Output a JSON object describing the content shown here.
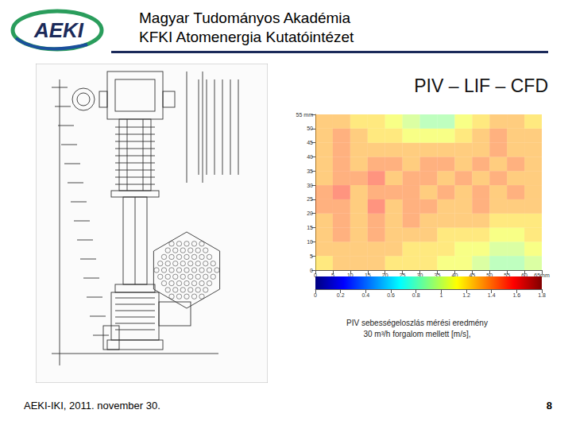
{
  "header": {
    "logo": "AEKI",
    "title_lines": [
      "Magyar Tudományos Akadémia",
      "KFKI Atomenergia Kutatóintézet"
    ]
  },
  "slide_title": "PIV – LIF – CFD",
  "caption_lines": [
    "PIV sebességeloszlás mérési eredmény",
    "30 m³/h forgalom mellett [m/s],"
  ],
  "footer": "AEKI-IKI, 2011. november 30.",
  "page_number": "8",
  "chart_data": {
    "type": "heatmap",
    "x": [
      2.5,
      7.5,
      12.5,
      17.5,
      22.5,
      27.5,
      32.5,
      37.5,
      42.5,
      47.5,
      52.5,
      57.5,
      62.5
    ],
    "y": [
      2.5,
      7.5,
      12.5,
      17.5,
      22.5,
      27.5,
      32.5,
      37.5,
      42.5,
      47.5,
      52.5
    ],
    "cells": [
      [
        1.2,
        1.3,
        1.3,
        1.3,
        1.2,
        1.2,
        1.2,
        1.1,
        1.1,
        1.0,
        0.9,
        0.9,
        1.0
      ],
      [
        1.3,
        1.3,
        1.3,
        1.3,
        1.3,
        1.2,
        1.2,
        1.2,
        1.1,
        1.1,
        1.0,
        1.0,
        1.1
      ],
      [
        1.3,
        1.4,
        1.3,
        1.4,
        1.3,
        1.3,
        1.3,
        1.2,
        1.2,
        1.2,
        1.1,
        1.1,
        1.2
      ],
      [
        1.3,
        1.4,
        1.3,
        1.4,
        1.3,
        1.4,
        1.3,
        1.3,
        1.3,
        1.3,
        1.2,
        1.2,
        1.2
      ],
      [
        1.4,
        1.4,
        1.3,
        1.5,
        1.3,
        1.4,
        1.4,
        1.3,
        1.3,
        1.4,
        1.3,
        1.3,
        1.3
      ],
      [
        1.4,
        1.5,
        1.3,
        1.4,
        1.4,
        1.4,
        1.3,
        1.4,
        1.3,
        1.4,
        1.3,
        1.4,
        1.3
      ],
      [
        1.3,
        1.4,
        1.4,
        1.5,
        1.3,
        1.4,
        1.4,
        1.3,
        1.4,
        1.3,
        1.4,
        1.3,
        1.3
      ],
      [
        1.3,
        1.4,
        1.3,
        1.4,
        1.4,
        1.3,
        1.4,
        1.4,
        1.3,
        1.4,
        1.3,
        1.4,
        1.3
      ],
      [
        1.3,
        1.4,
        1.3,
        1.3,
        1.3,
        1.3,
        1.3,
        1.3,
        1.3,
        1.3,
        1.4,
        1.3,
        1.3
      ],
      [
        1.3,
        1.4,
        1.3,
        1.2,
        1.2,
        1.1,
        1.1,
        1.1,
        1.2,
        1.3,
        1.4,
        1.3,
        1.3
      ],
      [
        1.3,
        1.3,
        1.2,
        1.2,
        1.1,
        1.0,
        0.9,
        0.9,
        1.1,
        1.2,
        1.3,
        1.3,
        1.2
      ]
    ],
    "xlim": [
      0,
      65
    ],
    "ylim": [
      0,
      55
    ],
    "xticks": [
      0,
      5,
      10,
      15,
      20,
      25,
      30,
      35,
      40,
      45,
      50,
      55,
      60,
      {
        "value": 65,
        "label": "65mm"
      }
    ],
    "yticks": [
      0,
      5,
      10,
      15,
      20,
      25,
      30,
      35,
      40,
      45,
      50,
      {
        "value": 55,
        "label": "55 mm"
      }
    ],
    "colorbar_range": [
      0,
      1.8
    ],
    "colorbar_ticks": [
      0,
      0.2,
      0.4,
      0.6,
      0.8,
      1,
      1.2,
      1.4,
      1.6,
      1.8
    ]
  }
}
